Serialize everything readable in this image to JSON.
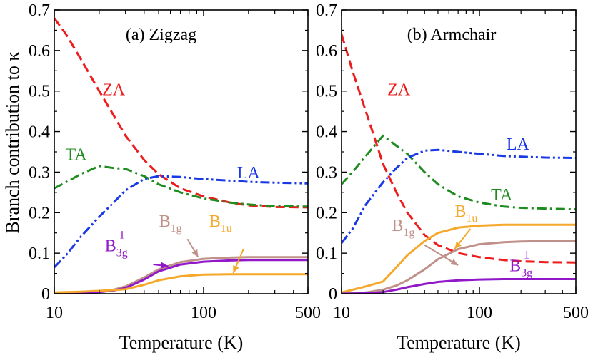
{
  "ylabel": "Branch contribution to κ",
  "chart_data": [
    {
      "type": "line",
      "title": "(a) Zigzag",
      "xlabel": "Temperature (K)",
      "ylabel": "Branch contribution to κ",
      "xscale": "log",
      "xlim": [
        10,
        500
      ],
      "ylim": [
        0,
        0.7
      ],
      "xticks": [
        {
          "value": 10,
          "label": "10"
        },
        {
          "value": 100,
          "label": "100"
        },
        {
          "value": 500,
          "label": "500"
        }
      ],
      "yticks": [
        {
          "value": 0,
          "label": "0"
        },
        {
          "value": 0.1,
          "label": "0.1"
        },
        {
          "value": 0.2,
          "label": "0.2"
        },
        {
          "value": 0.3,
          "label": "0.3"
        },
        {
          "value": 0.4,
          "label": "0.4"
        },
        {
          "value": 0.5,
          "label": "0.5"
        },
        {
          "value": 0.6,
          "label": "0.6"
        },
        {
          "value": 0.7,
          "label": "0.7"
        }
      ],
      "series": [
        {
          "key": "za",
          "name": "ZA",
          "color": "#ee1c1c",
          "style": "dash",
          "x": [
            10,
            12,
            15,
            20,
            25,
            30,
            40,
            50,
            70,
            100,
            150,
            200,
            300,
            500
          ],
          "y": [
            0.68,
            0.64,
            0.58,
            0.5,
            0.44,
            0.39,
            0.33,
            0.295,
            0.26,
            0.24,
            0.225,
            0.218,
            0.214,
            0.213
          ]
        },
        {
          "key": "ta",
          "name": "TA",
          "color": "#1e8c1e",
          "style": "dashdot",
          "x": [
            10,
            12,
            15,
            20,
            25,
            30,
            40,
            50,
            70,
            100,
            150,
            200,
            300,
            500
          ],
          "y": [
            0.26,
            0.275,
            0.295,
            0.315,
            0.31,
            0.308,
            0.29,
            0.27,
            0.25,
            0.235,
            0.225,
            0.22,
            0.216,
            0.215
          ]
        },
        {
          "key": "la",
          "name": "LA",
          "color": "#1a39e6",
          "style": "dashdotdot",
          "x": [
            10,
            12,
            15,
            20,
            25,
            30,
            40,
            50,
            70,
            100,
            150,
            200,
            300,
            500
          ],
          "y": [
            0.065,
            0.095,
            0.14,
            0.19,
            0.225,
            0.255,
            0.283,
            0.29,
            0.288,
            0.283,
            0.279,
            0.276,
            0.274,
            0.272
          ]
        },
        {
          "key": "b1g",
          "name": "B1g",
          "color": "#bf9189",
          "style": "solid",
          "x": [
            10,
            15,
            20,
            25,
            30,
            40,
            50,
            70,
            100,
            150,
            200,
            300,
            500
          ],
          "y": [
            0.0,
            0.002,
            0.005,
            0.01,
            0.018,
            0.04,
            0.06,
            0.078,
            0.086,
            0.089,
            0.09,
            0.09,
            0.09
          ]
        },
        {
          "key": "b3g1",
          "name": "B3g1",
          "color": "#9018c8",
          "style": "solid",
          "x": [
            10,
            15,
            20,
            25,
            30,
            40,
            50,
            70,
            100,
            150,
            200,
            300,
            500
          ],
          "y": [
            0.0,
            0.001,
            0.004,
            0.008,
            0.014,
            0.035,
            0.055,
            0.072,
            0.079,
            0.082,
            0.083,
            0.083,
            0.083
          ]
        },
        {
          "key": "b1u",
          "name": "B1u",
          "color": "#f5a82a",
          "style": "solid",
          "x": [
            10,
            15,
            20,
            25,
            30,
            40,
            50,
            70,
            100,
            150,
            200,
            300,
            500
          ],
          "y": [
            0.003,
            0.005,
            0.007,
            0.009,
            0.011,
            0.022,
            0.033,
            0.043,
            0.047,
            0.048,
            0.048,
            0.048,
            0.048
          ]
        }
      ],
      "labels": [
        {
          "key": "za",
          "text": "ZA"
        },
        {
          "key": "ta",
          "text": "TA"
        },
        {
          "key": "la",
          "text": "LA"
        },
        {
          "key": "b1g",
          "text": "B",
          "sub": "1g"
        },
        {
          "key": "b1u",
          "text": "B",
          "sub": "1u"
        },
        {
          "key": "b3g1",
          "text": "B",
          "sub": "3g",
          "sup": "1"
        }
      ]
    },
    {
      "type": "line",
      "title": "(b) Armchair",
      "xlabel": "Temperature (K)",
      "ylabel": "Branch contribution to κ",
      "xscale": "log",
      "xlim": [
        10,
        500
      ],
      "ylim": [
        0,
        0.7
      ],
      "xticks": [
        {
          "value": 10,
          "label": "10"
        },
        {
          "value": 100,
          "label": "100"
        },
        {
          "value": 500,
          "label": "500"
        }
      ],
      "yticks": [
        {
          "value": 0,
          "label": "0"
        },
        {
          "value": 0.1,
          "label": "0.1"
        },
        {
          "value": 0.2,
          "label": "0.2"
        },
        {
          "value": 0.3,
          "label": "0.3"
        },
        {
          "value": 0.4,
          "label": "0.4"
        },
        {
          "value": 0.5,
          "label": "0.5"
        },
        {
          "value": 0.6,
          "label": "0.6"
        },
        {
          "value": 0.7,
          "label": "0.7"
        }
      ],
      "series": [
        {
          "key": "za",
          "name": "ZA",
          "color": "#ee1c1c",
          "style": "dash",
          "x": [
            10,
            12,
            15,
            20,
            25,
            30,
            40,
            50,
            70,
            100,
            150,
            200,
            300,
            500
          ],
          "y": [
            0.64,
            0.55,
            0.45,
            0.32,
            0.25,
            0.2,
            0.145,
            0.12,
            0.1,
            0.09,
            0.083,
            0.08,
            0.078,
            0.077
          ]
        },
        {
          "key": "ta",
          "name": "TA",
          "color": "#1e8c1e",
          "style": "dashdot",
          "x": [
            10,
            12,
            15,
            20,
            25,
            30,
            40,
            50,
            70,
            100,
            150,
            200,
            300,
            500
          ],
          "y": [
            0.27,
            0.3,
            0.34,
            0.39,
            0.365,
            0.345,
            0.3,
            0.27,
            0.24,
            0.225,
            0.215,
            0.212,
            0.21,
            0.208
          ]
        },
        {
          "key": "la",
          "name": "LA",
          "color": "#1a39e6",
          "style": "dashdotdot",
          "x": [
            10,
            12,
            15,
            20,
            25,
            30,
            40,
            50,
            70,
            100,
            150,
            200,
            300,
            500
          ],
          "y": [
            0.125,
            0.16,
            0.22,
            0.275,
            0.31,
            0.335,
            0.353,
            0.355,
            0.35,
            0.345,
            0.34,
            0.338,
            0.336,
            0.335
          ]
        },
        {
          "key": "b1u",
          "name": "B1u",
          "color": "#f5a82a",
          "style": "solid",
          "x": [
            10,
            15,
            20,
            25,
            30,
            40,
            50,
            70,
            100,
            150,
            200,
            300,
            500
          ],
          "y": [
            0.003,
            0.018,
            0.03,
            0.065,
            0.095,
            0.13,
            0.15,
            0.163,
            0.168,
            0.17,
            0.17,
            0.17,
            0.17
          ]
        },
        {
          "key": "b1g",
          "name": "B1g",
          "color": "#bf9189",
          "style": "solid",
          "x": [
            10,
            15,
            20,
            25,
            30,
            40,
            50,
            70,
            100,
            150,
            200,
            300,
            500
          ],
          "y": [
            0.0,
            0.003,
            0.01,
            0.02,
            0.033,
            0.06,
            0.085,
            0.11,
            0.122,
            0.127,
            0.129,
            0.13,
            0.13
          ]
        },
        {
          "key": "b3g1",
          "name": "B3g1",
          "color": "#9018c8",
          "style": "solid",
          "x": [
            10,
            15,
            20,
            25,
            30,
            40,
            50,
            70,
            100,
            150,
            200,
            300,
            500
          ],
          "y": [
            0.0,
            0.001,
            0.004,
            0.01,
            0.016,
            0.024,
            0.029,
            0.033,
            0.035,
            0.036,
            0.036,
            0.036,
            0.036
          ]
        }
      ],
      "labels": [
        {
          "key": "za",
          "text": "ZA"
        },
        {
          "key": "ta",
          "text": "TA"
        },
        {
          "key": "la",
          "text": "LA"
        },
        {
          "key": "b1g",
          "text": "B",
          "sub": "1g"
        },
        {
          "key": "b1u",
          "text": "B",
          "sub": "1u"
        },
        {
          "key": "b3g1",
          "text": "B",
          "sub": "3g",
          "sup": "1"
        }
      ]
    }
  ]
}
